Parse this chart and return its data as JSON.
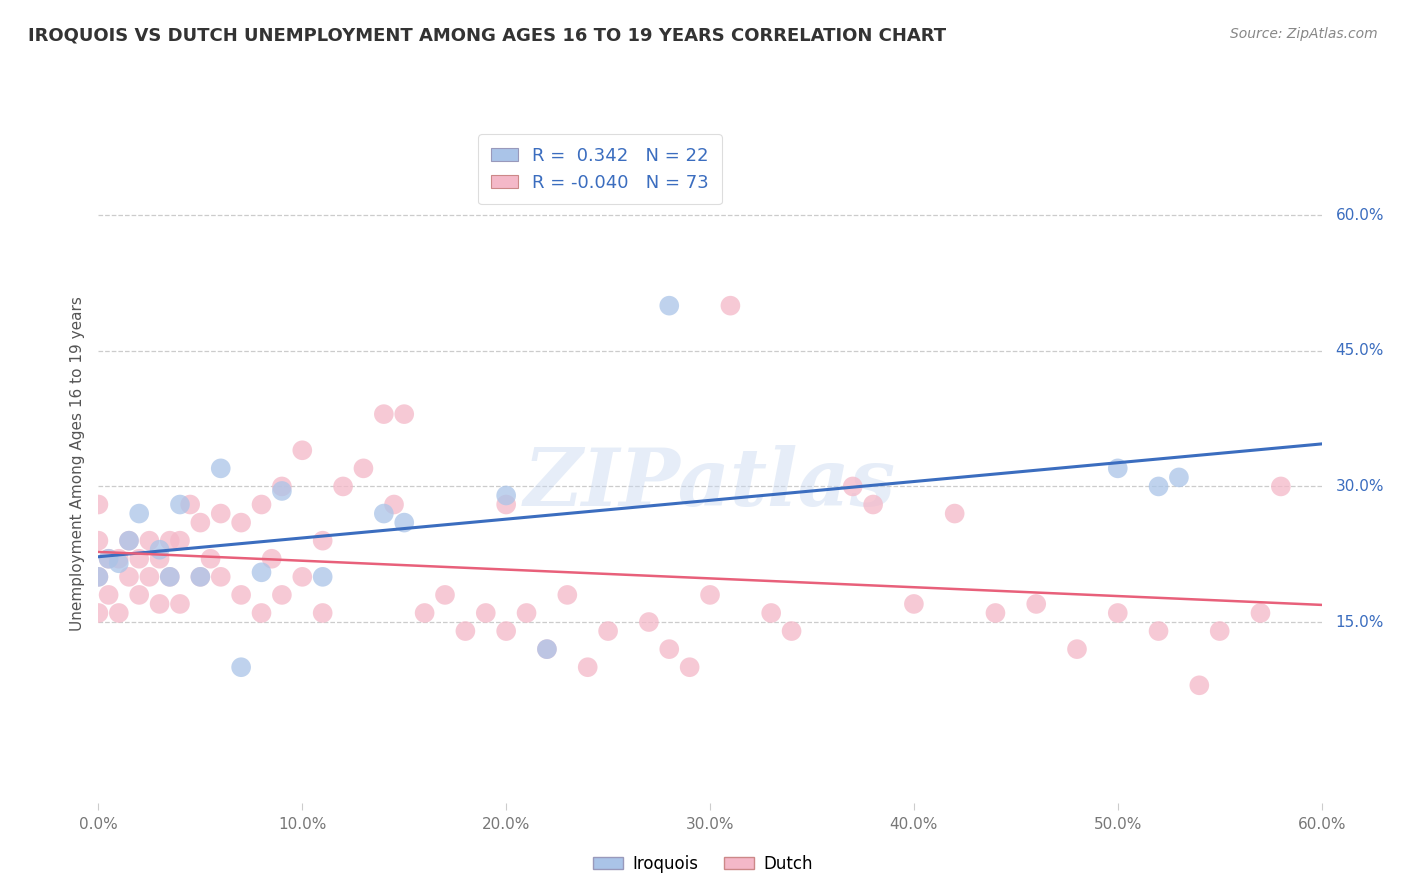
{
  "title": "IROQUOIS VS DUTCH UNEMPLOYMENT AMONG AGES 16 TO 19 YEARS CORRELATION CHART",
  "source": "Source: ZipAtlas.com",
  "ylabel": "Unemployment Among Ages 16 to 19 years",
  "xlim": [
    0.0,
    60.0
  ],
  "ylim": [
    -5.0,
    70.0
  ],
  "xticks": [
    0.0,
    10.0,
    20.0,
    30.0,
    40.0,
    50.0,
    60.0
  ],
  "xticklabels": [
    "0.0%",
    "10.0%",
    "20.0%",
    "30.0%",
    "40.0%",
    "50.0%",
    "60.0%"
  ],
  "yticks_right": [
    15.0,
    30.0,
    45.0,
    60.0
  ],
  "ytick_labels_right": [
    "15.0%",
    "30.0%",
    "45.0%",
    "60.0%"
  ],
  "grid_color": "#cccccc",
  "bg_color": "#ffffff",
  "blue_color": "#aac4e8",
  "pink_color": "#f4b8c8",
  "blue_line_color": "#3b6dbf",
  "pink_line_color": "#e8607a",
  "legend_R_blue": "R =  0.342",
  "legend_N_blue": "N = 22",
  "legend_R_pink": "R = -0.040",
  "legend_N_pink": "N = 73",
  "watermark": "ZIPatlas",
  "iroquois_x": [
    0.0,
    0.5,
    1.0,
    1.5,
    2.0,
    3.0,
    3.5,
    4.0,
    5.0,
    6.0,
    7.0,
    8.0,
    9.0,
    11.0,
    14.0,
    15.0,
    20.0,
    22.0,
    28.0,
    50.0,
    52.0,
    53.0
  ],
  "iroquois_y": [
    20.0,
    22.0,
    21.5,
    24.0,
    27.0,
    23.0,
    20.0,
    28.0,
    20.0,
    32.0,
    10.0,
    20.5,
    29.5,
    20.0,
    27.0,
    26.0,
    29.0,
    12.0,
    50.0,
    32.0,
    30.0,
    31.0
  ],
  "dutch_x": [
    0.0,
    0.0,
    0.0,
    0.0,
    0.5,
    0.5,
    1.0,
    1.0,
    1.5,
    1.5,
    2.0,
    2.0,
    2.5,
    2.5,
    3.0,
    3.0,
    3.5,
    3.5,
    4.0,
    4.0,
    4.5,
    5.0,
    5.0,
    5.5,
    6.0,
    6.0,
    7.0,
    7.0,
    8.0,
    8.0,
    8.5,
    9.0,
    9.0,
    10.0,
    10.0,
    11.0,
    11.0,
    12.0,
    13.0,
    14.0,
    14.5,
    15.0,
    16.0,
    17.0,
    18.0,
    19.0,
    20.0,
    20.0,
    21.0,
    22.0,
    23.0,
    24.0,
    25.0,
    27.0,
    28.0,
    29.0,
    30.0,
    31.0,
    33.0,
    34.0,
    37.0,
    38.0,
    40.0,
    42.0,
    44.0,
    46.0,
    48.0,
    50.0,
    52.0,
    54.0,
    55.0,
    57.0,
    58.0
  ],
  "dutch_y": [
    20.0,
    28.0,
    24.0,
    16.0,
    22.0,
    18.0,
    22.0,
    16.0,
    24.0,
    20.0,
    22.0,
    18.0,
    24.0,
    20.0,
    22.0,
    17.0,
    24.0,
    20.0,
    24.0,
    17.0,
    28.0,
    26.0,
    20.0,
    22.0,
    27.0,
    20.0,
    26.0,
    18.0,
    28.0,
    16.0,
    22.0,
    30.0,
    18.0,
    34.0,
    20.0,
    24.0,
    16.0,
    30.0,
    32.0,
    38.0,
    28.0,
    38.0,
    16.0,
    18.0,
    14.0,
    16.0,
    28.0,
    14.0,
    16.0,
    12.0,
    18.0,
    10.0,
    14.0,
    15.0,
    12.0,
    10.0,
    18.0,
    50.0,
    16.0,
    14.0,
    30.0,
    28.0,
    17.0,
    27.0,
    16.0,
    17.0,
    12.0,
    16.0,
    14.0,
    8.0,
    14.0,
    16.0,
    30.0
  ]
}
